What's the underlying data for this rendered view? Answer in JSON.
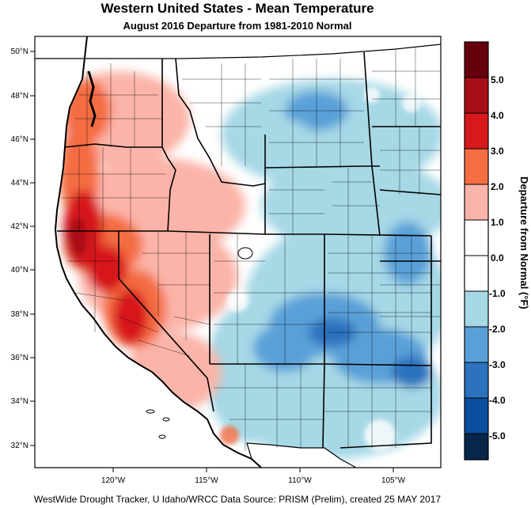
{
  "title": "Western United States - Mean Temperature",
  "subtitle": "August 2016  Departure from 1981-2010 Normal",
  "footer": "WestWide Drought Tracker, U Idaho/WRCC Data Source: PRISM (Prelim), created 25 MAY 2017",
  "lat_labels": [
    "50°N",
    "48°N",
    "46°N",
    "44°N",
    "42°N",
    "40°N",
    "38°N",
    "36°N",
    "34°N",
    "32°N"
  ],
  "lon_labels": [
    "120°W",
    "115°W",
    "110°W",
    "105°W"
  ],
  "colorbar": {
    "title": "Departure from Normal (°F)",
    "tick_labels": [
      "5.0",
      "4.0",
      "3.0",
      "2.0",
      "1.0",
      "0.0",
      "-1.0",
      "-2.0",
      "-3.0",
      "-4.0",
      "-5.0"
    ],
    "colors": [
      "#67000d",
      "#a50f15",
      "#d7191c",
      "#f46d43",
      "#fbb4a9",
      "#ffffff",
      "#ffffff",
      "#a6d8e6",
      "#5aa0d8",
      "#2c72bd",
      "#0a4e9e",
      "#08254a"
    ]
  },
  "palette": {
    "ocean": "#ffffff",
    "border": "#000000",
    "warm_strong": "#a50f15",
    "warm_mid": "#d7191c",
    "warm_light": "#f46d43",
    "warm_pale": "#fbb4a9",
    "cool_pale": "#a6d8e6",
    "cool_mid": "#5aa0d8",
    "cool_strong": "#2c72bd"
  }
}
